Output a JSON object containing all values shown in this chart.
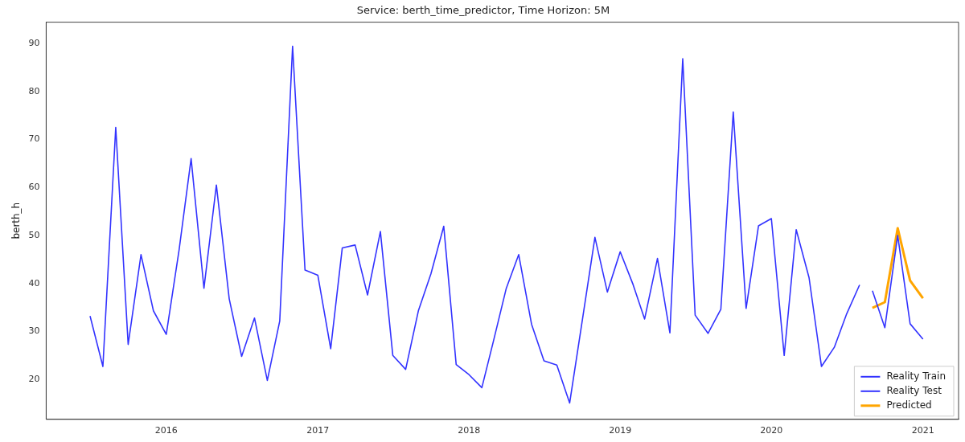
{
  "chart_data": {
    "type": "line",
    "title": "Service: berth_time_predictor, Time Horizon: 5M",
    "ylabel": "berth_h",
    "xlim": [
      "2015-03-17",
      "2021-03-28"
    ],
    "xticks": [
      "2016",
      "2017",
      "2018",
      "2019",
      "2020",
      "2021"
    ],
    "ylim": [
      11.7,
      94.4
    ],
    "yticks": [
      20,
      30,
      40,
      50,
      60,
      70,
      80,
      90
    ],
    "grid": false,
    "legend": "bottom right",
    "marker": "none",
    "line_style": "solid",
    "series": [
      {
        "name": "Reality Train",
        "color": "#3333ff",
        "x": [
          "2015-07",
          "2015-08",
          "2015-09",
          "2015-10",
          "2015-11",
          "2015-12",
          "2016-01",
          "2016-02",
          "2016-03",
          "2016-04",
          "2016-05",
          "2016-06",
          "2016-07",
          "2016-08",
          "2016-09",
          "2016-10",
          "2016-11",
          "2016-12",
          "2017-01",
          "2017-02",
          "2017-03",
          "2017-04",
          "2017-05",
          "2017-06",
          "2017-07",
          "2017-08",
          "2017-09",
          "2017-10",
          "2017-11",
          "2017-12",
          "2018-01",
          "2018-02",
          "2018-03",
          "2018-04",
          "2018-05",
          "2018-06",
          "2018-07",
          "2018-08",
          "2018-09",
          "2018-10",
          "2018-11",
          "2018-12",
          "2019-01",
          "2019-02",
          "2019-03",
          "2019-04",
          "2019-05",
          "2019-06",
          "2019-07",
          "2019-08",
          "2019-09",
          "2019-10",
          "2019-11",
          "2019-12",
          "2020-01",
          "2020-02",
          "2020-03",
          "2020-04",
          "2020-05",
          "2020-06",
          "2020-07",
          "2020-08"
        ],
        "values": [
          33.2,
          22.7,
          72.5,
          27.3,
          46,
          34.3,
          29.4,
          47,
          66,
          39,
          60.5,
          36.8,
          24.8,
          32.8,
          19.8,
          32.2,
          89.4,
          42.8,
          41.7,
          26.4,
          47.4,
          48,
          37.6,
          50.8,
          25,
          22.1,
          34.4,
          42,
          51.9,
          23.1,
          21,
          18.3,
          28,
          39,
          46,
          31.5,
          23.9,
          23,
          15.1,
          32,
          49.6,
          38.2,
          46.6,
          39.8,
          32.6,
          45.2,
          29.7,
          86.8,
          33.4,
          29.6,
          34.6,
          75.7,
          34.8,
          52,
          53.5,
          25,
          51.2,
          41.2,
          22.7,
          26.7,
          33.7,
          39.7
        ]
      },
      {
        "name": "Reality Test",
        "color": "#3333ff",
        "x": [
          "2020-09",
          "2020-10",
          "2020-11",
          "2020-12",
          "2021-01"
        ],
        "values": [
          38.5,
          30.8,
          50,
          31.6,
          28.4
        ]
      },
      {
        "name": "Predicted",
        "color": "#ffa500",
        "x": [
          "2020-09",
          "2020-10",
          "2020-11",
          "2020-12",
          "2021-01"
        ],
        "values": [
          34.9,
          36.1,
          51.5,
          40.6,
          36.9
        ]
      }
    ]
  }
}
